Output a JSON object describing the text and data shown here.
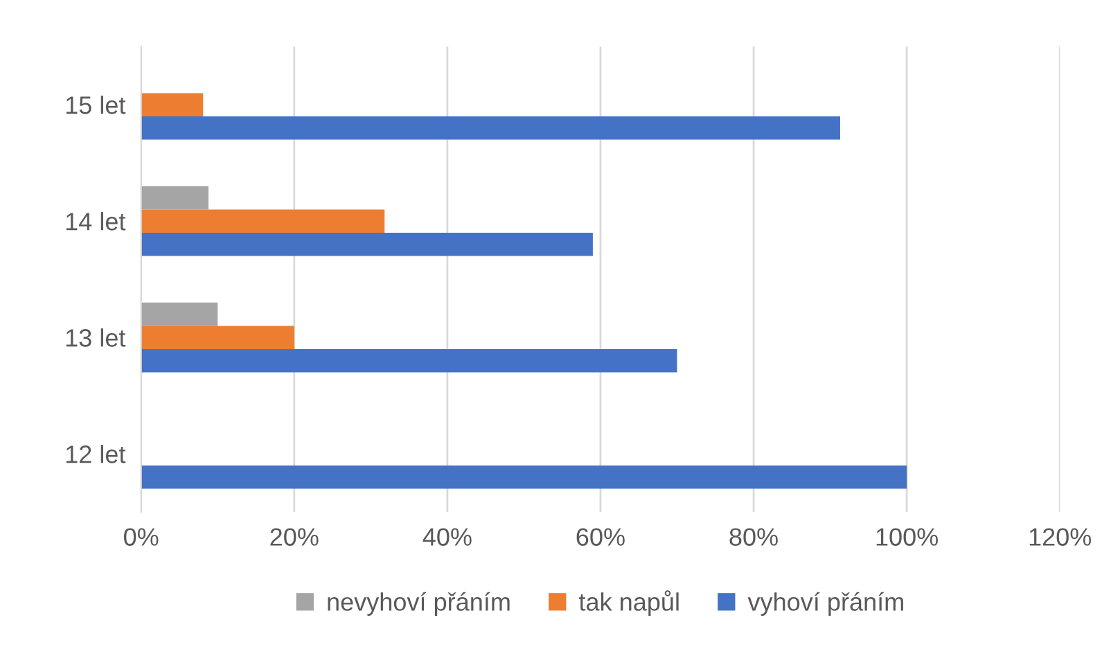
{
  "chart_data": {
    "type": "bar",
    "orientation": "horizontal",
    "categories": [
      "15 let",
      "14 let",
      "13 let",
      "12 let"
    ],
    "series": [
      {
        "name": "nevyhoví přáním",
        "color": "#a5a5a5",
        "values": [
          null,
          8.8,
          10,
          null
        ]
      },
      {
        "name": "tak napůl",
        "color": "#ed7d31",
        "values": [
          8.1,
          31.8,
          20,
          null
        ]
      },
      {
        "name": "vyhoví přáním",
        "color": "#4472c4",
        "values": [
          91.3,
          59,
          70,
          100
        ]
      }
    ],
    "xlim": [
      0,
      120
    ],
    "xticks": [
      {
        "value": 0,
        "label": "0%"
      },
      {
        "value": 20,
        "label": "20%"
      },
      {
        "value": 40,
        "label": "40%"
      },
      {
        "value": 60,
        "label": "60%"
      },
      {
        "value": 80,
        "label": "80%"
      },
      {
        "value": 100,
        "label": "100%"
      },
      {
        "value": 120,
        "label": "120%"
      }
    ],
    "grid": "x",
    "legend": "bottom"
  }
}
